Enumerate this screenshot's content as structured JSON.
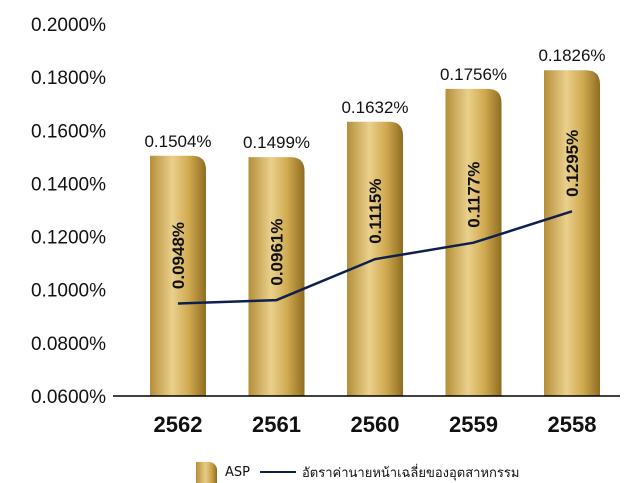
{
  "chart_data": {
    "type": "bar",
    "categories": [
      "2562",
      "2561",
      "2560",
      "2559",
      "2558"
    ],
    "series": [
      {
        "name": "ASP",
        "kind": "bar",
        "values": [
          0.1504,
          0.1499,
          0.1632,
          0.1756,
          0.1826
        ],
        "labels": [
          "0.1504%",
          "0.1499%",
          "0.1632%",
          "0.1756%",
          "0.1826%"
        ],
        "color": "#c9a24a"
      },
      {
        "name": "อัตราค่านายหน้าเฉลี่ยของอุตสาหกรรม",
        "kind": "line",
        "values": [
          0.0948,
          0.0961,
          0.1115,
          0.1177,
          0.1295
        ],
        "labels": [
          "0.0948%",
          "0.0961%",
          "0.1115%",
          "0.1177%",
          "0.1295%"
        ],
        "color": "#0f1f4d"
      }
    ],
    "yticks": [
      "0.0600%",
      "0.0800%",
      "0.1000%",
      "0.1200%",
      "0.1400%",
      "0.1600%",
      "0.1800%",
      "0.2000%"
    ],
    "ylim": [
      0.06,
      0.2
    ],
    "title": "",
    "xlabel": "",
    "ylabel": "",
    "grid": false,
    "legend_position": "bottom"
  }
}
